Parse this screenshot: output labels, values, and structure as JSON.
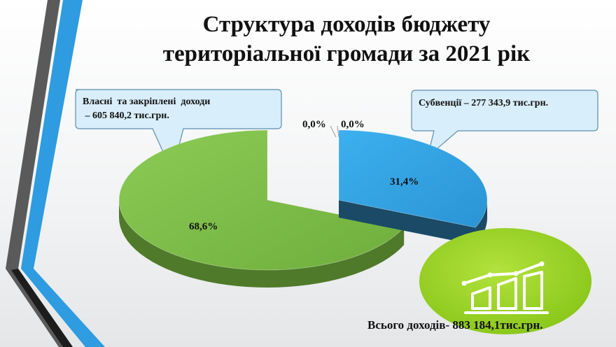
{
  "title": {
    "line1": "Структура доходів бюджету",
    "line2": "територіальної громади за 2021 рік"
  },
  "chart_data": {
    "type": "pie",
    "title": "Структура доходів бюджету територіальної громади за 2021 рік",
    "categories": [
      "Власні та закріплені доходи",
      "Субвенції",
      "",
      ""
    ],
    "values": [
      68.6,
      31.4,
      0.0,
      0.0
    ],
    "data_labels": [
      "68,6%",
      "31,4%",
      "0,0%",
      "0,0%"
    ],
    "colors": [
      "#7dbd4b",
      "#36a4e3",
      "#cccccc",
      "#cccccc"
    ],
    "side_colors": [
      "#4f7a2a",
      "#1a4a66",
      "#999999",
      "#999999"
    ]
  },
  "callouts": {
    "own_line1": "Власні  та закріплені  доходи",
    "own_line2": " – 605 840,2 тис.грн.",
    "subventions": "Субвенції – 277 343,9 тис.грн."
  },
  "total": "Всього доходів- 883 184,1тис.грн.",
  "decor": {
    "badge_color": "#9ed62a",
    "stripe_colors": [
      "#5a5a5a",
      "#2f9be0",
      "#1d1d1d"
    ],
    "badge_icon": "bar-chart-growth-icon"
  }
}
